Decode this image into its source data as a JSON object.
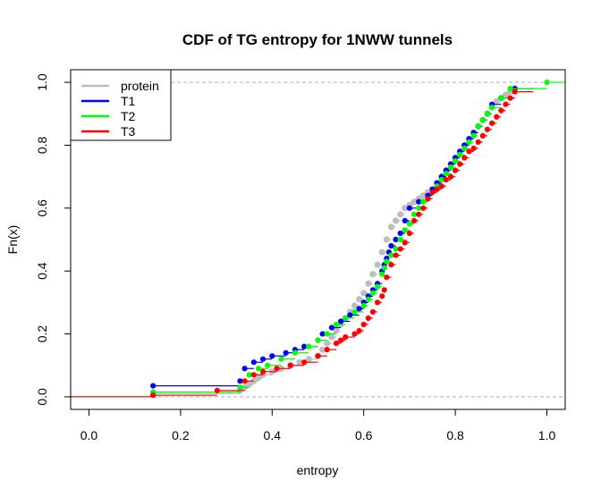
{
  "chart_data": {
    "type": "line",
    "subtype": "empirical-cdf-step",
    "title": "CDF of TG entropy for 1NWW  tunnels",
    "xlabel": "entropy",
    "ylabel": "Fn(x)",
    "xlim": [
      -0.04,
      1.04
    ],
    "ylim": [
      -0.04,
      1.04
    ],
    "xticks": [
      "0.0",
      "0.2",
      "0.4",
      "0.6",
      "0.8",
      "1.0"
    ],
    "xtick_values": [
      0,
      0.2,
      0.4,
      0.6,
      0.8,
      1.0
    ],
    "yticks": [
      "0.0",
      "0.2",
      "0.4",
      "0.6",
      "0.8",
      "1.0"
    ],
    "ytick_values": [
      0,
      0.2,
      0.4,
      0.6,
      0.8,
      1.0
    ],
    "reference_lines": [
      0,
      1
    ],
    "legend_position": "top-left",
    "series": [
      {
        "name": "protein",
        "color": "#bebebe",
        "x": [
          0.14,
          0.33,
          0.34,
          0.35,
          0.36,
          0.37,
          0.38,
          0.4,
          0.42,
          0.44,
          0.46,
          0.48,
          0.5,
          0.51,
          0.52,
          0.53,
          0.54,
          0.55,
          0.56,
          0.57,
          0.58,
          0.59,
          0.6,
          0.61,
          0.62,
          0.63,
          0.64,
          0.65,
          0.66,
          0.67,
          0.68,
          0.69,
          0.7,
          0.71,
          0.72,
          0.73,
          0.74,
          0.75,
          0.76,
          0.77,
          0.78,
          0.79,
          0.8,
          0.81,
          0.82,
          0.83,
          0.84,
          0.85,
          0.86,
          0.87,
          0.88,
          0.89,
          0.9,
          0.91,
          0.92,
          0.93
        ],
        "y": [
          0.01,
          0.02,
          0.03,
          0.04,
          0.05,
          0.06,
          0.07,
          0.08,
          0.09,
          0.1,
          0.11,
          0.12,
          0.13,
          0.15,
          0.17,
          0.19,
          0.21,
          0.23,
          0.25,
          0.27,
          0.29,
          0.31,
          0.33,
          0.36,
          0.39,
          0.42,
          0.46,
          0.5,
          0.54,
          0.56,
          0.58,
          0.6,
          0.61,
          0.62,
          0.63,
          0.64,
          0.65,
          0.66,
          0.68,
          0.7,
          0.72,
          0.74,
          0.76,
          0.78,
          0.8,
          0.82,
          0.84,
          0.86,
          0.88,
          0.9,
          0.92,
          0.94,
          0.95,
          0.96,
          0.97,
          0.98
        ]
      },
      {
        "name": "T1",
        "color": "#0000ff",
        "x": [
          0.14,
          0.33,
          0.34,
          0.36,
          0.38,
          0.4,
          0.43,
          0.45,
          0.47,
          0.5,
          0.51,
          0.53,
          0.55,
          0.57,
          0.59,
          0.6,
          0.61,
          0.62,
          0.63,
          0.64,
          0.645,
          0.65,
          0.655,
          0.66,
          0.67,
          0.68,
          0.69,
          0.7,
          0.72,
          0.74,
          0.75,
          0.76,
          0.77,
          0.78,
          0.79,
          0.8,
          0.81,
          0.82,
          0.83,
          0.84,
          0.85,
          0.86,
          0.87,
          0.88,
          0.9,
          0.93
        ],
        "y": [
          0.035,
          0.05,
          0.09,
          0.11,
          0.12,
          0.13,
          0.14,
          0.15,
          0.16,
          0.18,
          0.2,
          0.22,
          0.24,
          0.26,
          0.28,
          0.3,
          0.32,
          0.34,
          0.36,
          0.4,
          0.42,
          0.44,
          0.46,
          0.48,
          0.5,
          0.52,
          0.56,
          0.6,
          0.62,
          0.64,
          0.66,
          0.68,
          0.7,
          0.72,
          0.74,
          0.76,
          0.78,
          0.8,
          0.82,
          0.84,
          0.86,
          0.88,
          0.9,
          0.93,
          0.95,
          0.98
        ]
      },
      {
        "name": "T2",
        "color": "#00ff00",
        "x": [
          0.14,
          0.33,
          0.35,
          0.37,
          0.39,
          0.42,
          0.45,
          0.48,
          0.5,
          0.52,
          0.54,
          0.56,
          0.58,
          0.6,
          0.61,
          0.62,
          0.63,
          0.64,
          0.645,
          0.65,
          0.66,
          0.67,
          0.68,
          0.69,
          0.7,
          0.71,
          0.72,
          0.73,
          0.74,
          0.75,
          0.76,
          0.77,
          0.78,
          0.79,
          0.8,
          0.81,
          0.82,
          0.83,
          0.84,
          0.85,
          0.86,
          0.87,
          0.88,
          0.9,
          0.92,
          1.0
        ],
        "y": [
          0.015,
          0.03,
          0.07,
          0.09,
          0.1,
          0.12,
          0.14,
          0.16,
          0.18,
          0.2,
          0.23,
          0.25,
          0.27,
          0.29,
          0.31,
          0.33,
          0.35,
          0.39,
          0.41,
          0.43,
          0.45,
          0.47,
          0.5,
          0.53,
          0.55,
          0.58,
          0.6,
          0.62,
          0.63,
          0.65,
          0.67,
          0.69,
          0.71,
          0.73,
          0.75,
          0.77,
          0.79,
          0.81,
          0.83,
          0.86,
          0.88,
          0.9,
          0.92,
          0.95,
          0.98,
          1.0
        ]
      },
      {
        "name": "T3",
        "color": "#ff0000",
        "x": [
          0.14,
          0.28,
          0.34,
          0.36,
          0.38,
          0.41,
          0.44,
          0.47,
          0.5,
          0.52,
          0.54,
          0.55,
          0.56,
          0.58,
          0.59,
          0.6,
          0.61,
          0.62,
          0.63,
          0.64,
          0.645,
          0.65,
          0.66,
          0.67,
          0.68,
          0.69,
          0.7,
          0.71,
          0.72,
          0.73,
          0.74,
          0.75,
          0.76,
          0.77,
          0.78,
          0.79,
          0.8,
          0.81,
          0.82,
          0.83,
          0.84,
          0.85,
          0.86,
          0.87,
          0.88,
          0.89,
          0.9,
          0.91,
          0.92,
          0.93
        ],
        "y": [
          0.005,
          0.02,
          0.05,
          0.07,
          0.08,
          0.09,
          0.1,
          0.11,
          0.13,
          0.15,
          0.17,
          0.18,
          0.19,
          0.2,
          0.21,
          0.23,
          0.25,
          0.27,
          0.3,
          0.32,
          0.34,
          0.38,
          0.42,
          0.45,
          0.47,
          0.49,
          0.52,
          0.56,
          0.58,
          0.6,
          0.63,
          0.65,
          0.66,
          0.67,
          0.69,
          0.7,
          0.72,
          0.74,
          0.76,
          0.78,
          0.79,
          0.81,
          0.83,
          0.85,
          0.87,
          0.89,
          0.91,
          0.93,
          0.95,
          0.97
        ]
      }
    ]
  }
}
